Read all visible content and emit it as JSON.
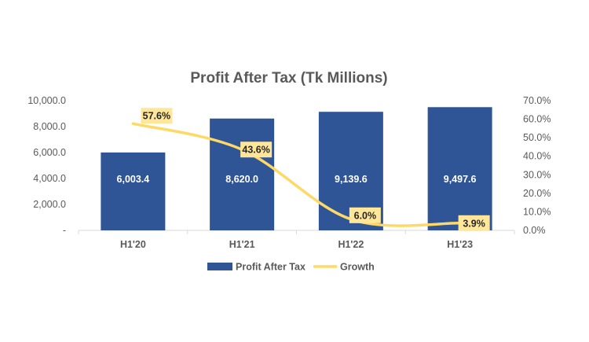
{
  "chart_data": {
    "type": "bar",
    "title": "Profit After Tax (Tk Millions)",
    "categories": [
      "H1'20",
      "H1'21",
      "H1'22",
      "H1'23"
    ],
    "series": [
      {
        "name": "Profit After Tax",
        "type": "bar",
        "axis": "left",
        "values": [
          6003.4,
          8620.0,
          9139.6,
          9497.6
        ],
        "labels": [
          "6,003.4",
          "8,620.0",
          "9,139.6",
          "9,497.6"
        ],
        "color": "#2F5597"
      },
      {
        "name": "Growth",
        "type": "line",
        "axis": "right",
        "values": [
          57.6,
          43.6,
          6.0,
          3.9
        ],
        "labels": [
          "57.6%",
          "43.6%",
          "6.0%",
          "3.9%"
        ],
        "color": "#FFD966"
      }
    ],
    "y_left": {
      "range": [
        0,
        10000
      ],
      "ticks": [
        0,
        2000,
        4000,
        6000,
        8000,
        10000
      ],
      "tick_labels": [
        "-",
        "2,000.0",
        "4,000.0",
        "6,000.0",
        "8,000.0",
        "10,000.0"
      ]
    },
    "y_right": {
      "range": [
        0,
        70
      ],
      "ticks": [
        0,
        10,
        20,
        30,
        40,
        50,
        60,
        70
      ],
      "tick_labels": [
        "0.0%",
        "10.0%",
        "20.0%",
        "30.0%",
        "40.0%",
        "50.0%",
        "60.0%",
        "70.0%"
      ]
    },
    "grid": false,
    "legend_position": "bottom",
    "colors": {
      "text": "#595959",
      "title": "#595959",
      "axis": "#D9D9D9",
      "bar_label": "#FFFFFF",
      "growth_label_bg": "#FFE699",
      "growth_label_text": "#262626"
    }
  }
}
